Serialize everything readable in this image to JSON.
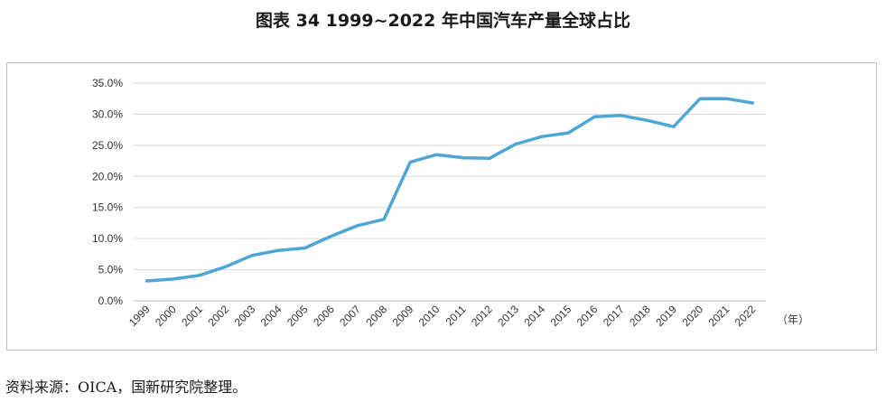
{
  "title": "图表 34  1999~2022 年中国汽车产量全球占比",
  "source": "资料来源：OICA，国新研究院整理。",
  "chart_data": {
    "type": "line",
    "title": "1999~2022 年中国汽车产量全球占比",
    "x_unit_label": "（年）",
    "categories": [
      "1999",
      "2000",
      "2001",
      "2002",
      "2003",
      "2004",
      "2005",
      "2006",
      "2007",
      "2008",
      "2009",
      "2010",
      "2011",
      "2012",
      "2013",
      "2014",
      "2015",
      "2016",
      "2017",
      "2018",
      "2019",
      "2020",
      "2021",
      "2022"
    ],
    "series": [
      {
        "values": [
          3.2,
          3.5,
          4.1,
          5.5,
          7.3,
          8.1,
          8.5,
          10.4,
          12.1,
          13.1,
          22.3,
          23.5,
          23.0,
          22.9,
          25.2,
          26.4,
          27.0,
          29.6,
          29.8,
          29.0,
          28.0,
          32.5,
          32.5,
          31.8
        ]
      }
    ],
    "y_ticks": [
      "0.0%",
      "5.0%",
      "10.0%",
      "15.0%",
      "20.0%",
      "25.0%",
      "30.0%",
      "35.0%"
    ],
    "ylim": [
      0,
      35
    ],
    "line_color": "#4ea6d6",
    "grid": true
  }
}
